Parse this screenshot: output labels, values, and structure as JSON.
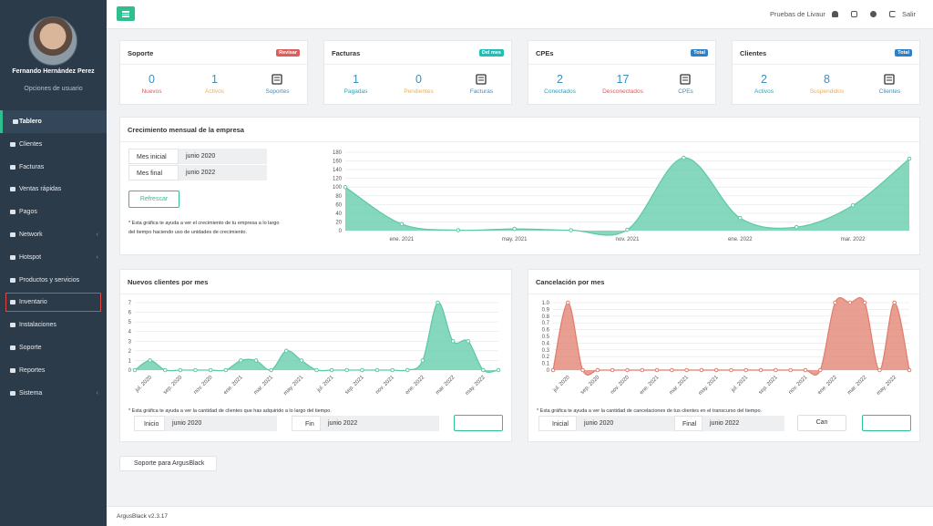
{
  "sidebar": {
    "user_name": "Fernando Hernández Perez",
    "user_options": "Opciones de usuario",
    "menu": [
      "Tablero",
      "Clientes",
      "Facturas",
      "Ventas rápidas",
      "Pagos",
      "Network",
      "Hotspot",
      "Productos y servicios",
      "Inventario",
      "Instalaciones",
      "Soporte",
      "Reportes",
      "Sistema"
    ]
  },
  "header": {
    "company": "Pruebas de Livaur",
    "logout": "Salir"
  },
  "cards": [
    {
      "title": "Soporte",
      "badge": "Revisar",
      "stats": [
        {
          "value": 0,
          "label": "Nuevos"
        },
        {
          "value": 1,
          "label": "Activos"
        },
        {
          "label": "Soportes"
        }
      ]
    },
    {
      "title": "Facturas",
      "badge": "Del mes",
      "stats": [
        {
          "value": 1,
          "label": "Pagadas"
        },
        {
          "value": 0,
          "label": "Pendientes"
        },
        {
          "label": "Facturas"
        }
      ]
    },
    {
      "title": "CPEs",
      "badge": "Total",
      "stats": [
        {
          "value": 2,
          "label": "Conectados"
        },
        {
          "value": 17,
          "label": "Desconectados"
        },
        {
          "label": "CPEs"
        }
      ]
    },
    {
      "title": "Clientes",
      "badge": "Total",
      "stats": [
        {
          "value": 2,
          "label": "Activos"
        },
        {
          "value": 8,
          "label": "Suspendidos"
        },
        {
          "label": "Clientes"
        }
      ]
    }
  ],
  "growth": {
    "rows": [
      [
        "Mes inicial",
        "junio 2020"
      ],
      [
        "Mes final",
        "junio 2022"
      ]
    ],
    "refresh": "Refrescar"
  },
  "new_clients": {
    "start_label": "Inicio",
    "start": "junio 2020",
    "end_label": "Fin",
    "end": "junio 2022"
  },
  "cancellations": {
    "start_label": "Inicial",
    "start": "junio 2020",
    "end_label": "Final",
    "end": "junio 2022",
    "button": "Can"
  },
  "support_button": "Soporte para ArgusBlack",
  "footer": {
    "version": "ArgusBlack v2.3.17"
  },
  "chart_data": [
    {
      "type": "area",
      "title": "Crecimiento mensual de la empresa",
      "note": "* Esta gráfica te ayuda a ver el crecimiento de tu empresa a lo largo del tiempo haciendo uso de unidades de crecimiento.",
      "categories": [
        null,
        "ene. 2021",
        null,
        "may. 2021",
        null,
        "nov. 2021",
        null,
        "ene. 2022",
        null,
        "mar. 2022",
        null
      ],
      "values": [
        100,
        15,
        1,
        4,
        1,
        2,
        167,
        29,
        8,
        58,
        165
      ],
      "color": "#5cc9a7",
      "ylim": [
        0,
        180
      ],
      "yticks": [
        0,
        20,
        40,
        60,
        80,
        100,
        120,
        140,
        160,
        180
      ],
      "grid": true
    },
    {
      "type": "area",
      "title": "Nuevos clientes por mes",
      "note": "* Esta gráfica te ayuda a ver la cantidad de clientes que has adquirido a lo largo del tiempo.",
      "categories": [
        null,
        "jul. 2020",
        null,
        "sep. 2020",
        null,
        "nov. 2020",
        null,
        "ene. 2021",
        null,
        "mar. 2021",
        null,
        "may. 2021",
        null,
        "jul. 2021",
        null,
        "sep. 2021",
        null,
        "nov. 2021",
        null,
        "ene. 2022",
        null,
        "mar. 2022",
        null,
        "may. 2022",
        null
      ],
      "values": [
        0,
        1,
        0,
        0,
        0,
        0,
        0,
        1,
        1,
        0,
        2,
        1,
        0,
        0,
        0,
        0,
        0,
        0,
        0,
        1,
        7,
        3,
        3,
        0,
        0
      ],
      "color": "#5cc9a7",
      "ylim": [
        0,
        7
      ],
      "yticks": [
        0,
        1,
        2,
        3,
        4,
        5,
        6,
        7
      ],
      "grid": true
    },
    {
      "type": "area",
      "title": "Cancelación por mes",
      "note": "* Esta gráfica te ayuda a ver la cantidad de cancelaciones de tus clientes en el transcurso del tiempo.",
      "categories": [
        null,
        "jul. 2020",
        null,
        "sep. 2020",
        null,
        "nov. 2020",
        null,
        "ene. 2021",
        null,
        "mar. 2021",
        null,
        "may. 2021",
        null,
        "jul. 2021",
        null,
        "sep. 2021",
        null,
        "nov. 2021",
        null,
        "ene. 2022",
        null,
        "mar. 2022",
        null,
        "may. 2022",
        null
      ],
      "values": [
        0,
        1,
        0,
        0,
        0,
        0,
        0,
        0,
        0,
        0,
        0,
        0,
        0,
        0,
        0,
        0,
        0,
        0,
        0,
        1,
        1,
        1,
        0,
        1,
        0
      ],
      "color": "#e07d6c",
      "ylim": [
        0,
        1
      ],
      "yticks": [
        0,
        0.1,
        0.2,
        0.3,
        0.4,
        0.5,
        0.6,
        0.7,
        0.8,
        0.9,
        {
          "value": 1,
          "label": "1.0"
        }
      ],
      "grid": true
    }
  ]
}
